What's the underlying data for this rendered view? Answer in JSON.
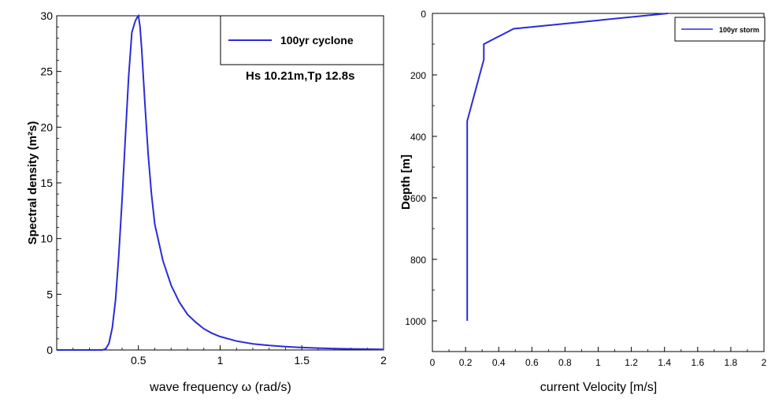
{
  "chart_data": [
    {
      "type": "line",
      "xlabel": "wave frequency  ω  (rad/s)",
      "ylabel": "Spectral density (m²s)",
      "xlim": [
        0,
        2
      ],
      "ylim": [
        0,
        30
      ],
      "x_ticks": [
        "0.5",
        "1",
        "1.5",
        "2"
      ],
      "y_ticks": [
        "0",
        "5",
        "10",
        "15",
        "20",
        "25",
        "30"
      ],
      "legend_position": "top-right",
      "annotation": "Hs 10.21m,Tp 12.8s",
      "series": [
        {
          "name": "100yr cyclone",
          "color": "#2b2bd8",
          "x": [
            0.28,
            0.3,
            0.32,
            0.34,
            0.36,
            0.38,
            0.4,
            0.42,
            0.44,
            0.46,
            0.48,
            0.49,
            0.5,
            0.51,
            0.52,
            0.54,
            0.56,
            0.58,
            0.6,
            0.65,
            0.7,
            0.75,
            0.8,
            0.85,
            0.9,
            0.95,
            1.0,
            1.1,
            1.2,
            1.3,
            1.4,
            1.5,
            1.6,
            1.7,
            1.8,
            1.9,
            2.0
          ],
          "y": [
            0,
            0.1,
            0.6,
            2.0,
            4.5,
            8.5,
            13.5,
            19.0,
            24.5,
            28.5,
            29.5,
            29.8,
            30.0,
            29.0,
            27.0,
            22.0,
            17.5,
            14.0,
            11.3,
            8.0,
            5.8,
            4.3,
            3.2,
            2.5,
            1.9,
            1.5,
            1.2,
            0.8,
            0.55,
            0.4,
            0.3,
            0.22,
            0.17,
            0.13,
            0.1,
            0.08,
            0.06
          ]
        }
      ]
    },
    {
      "type": "line",
      "xlabel": "current Velocity [m/s]",
      "ylabel": "Depth [m]",
      "xlim": [
        0,
        2
      ],
      "ylim": [
        1100,
        0
      ],
      "x_ticks": [
        "0",
        "0.2",
        "0.4",
        "0.6",
        "0.8",
        "1",
        "1.2",
        "1.4",
        "1.6",
        "1.8",
        "2"
      ],
      "y_ticks": [
        "0",
        "200",
        "400",
        "600",
        "800",
        "1000"
      ],
      "legend_position": "top-right",
      "series": [
        {
          "name": "100yr storm",
          "color": "#2b2bd8",
          "velocity": [
            1.42,
            0.49,
            0.31,
            0.31,
            0.21,
            0.21
          ],
          "depth": [
            0,
            50,
            100,
            150,
            350,
            1000
          ]
        }
      ]
    }
  ]
}
